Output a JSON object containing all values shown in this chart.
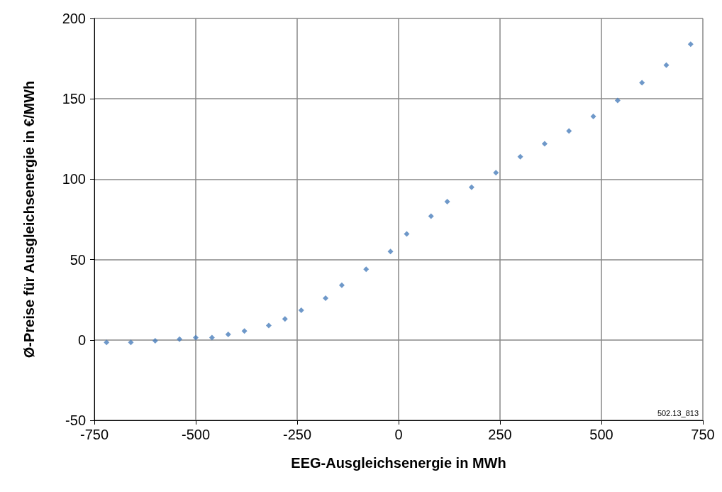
{
  "chart_data": {
    "type": "scatter",
    "xlabel": "EEG-Ausgleichsenergie in MWh",
    "ylabel": "Ø-Preise für Ausgleichsenergie in €/MWh",
    "x": [
      -720,
      -660,
      -600,
      -540,
      -500,
      -460,
      -420,
      -380,
      -320,
      -280,
      -240,
      -180,
      -140,
      -80,
      -20,
      20,
      80,
      120,
      180,
      240,
      300,
      360,
      420,
      480,
      540,
      600,
      660,
      720
    ],
    "series": [
      {
        "color": "#4a7ebb",
        "values": [
          -1.5,
          -1.5,
          -0.5,
          0.5,
          1.5,
          1.5,
          3.5,
          5.5,
          9,
          13,
          18.5,
          26,
          34,
          44,
          55,
          66,
          77,
          86,
          95,
          104,
          114,
          122,
          130,
          139,
          149,
          160,
          171,
          184
        ]
      }
    ],
    "xlim": [
      -750,
      750
    ],
    "xticks": [
      -750,
      -500,
      -250,
      0,
      250,
      500,
      750
    ],
    "ylim": [
      -50,
      200
    ],
    "yticks": [
      -50,
      0,
      50,
      100,
      150,
      200
    ],
    "grid": true,
    "marker": "diamond",
    "annotations": [
      "502.13_813"
    ]
  }
}
